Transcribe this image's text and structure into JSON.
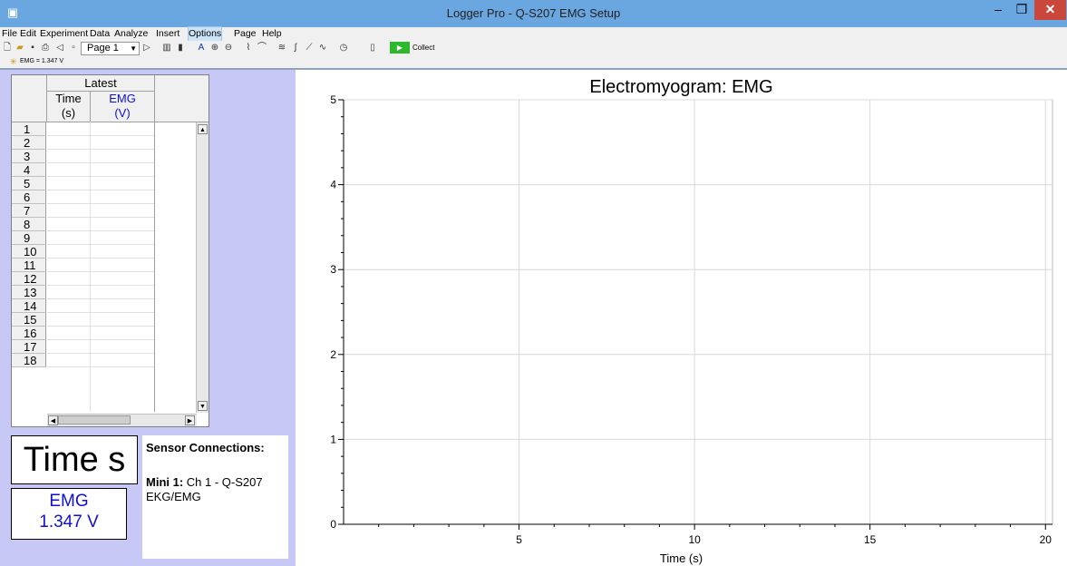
{
  "window": {
    "title": "Logger Pro - Q-S207 EMG Setup",
    "minimize": "–",
    "maximize": "❐",
    "close": "✕"
  },
  "menu": [
    "File",
    "Edit",
    "Experiment",
    "Data",
    "Analyze",
    "Insert",
    "Options",
    "Page",
    "Help"
  ],
  "toolbar": {
    "page_value": "Page 1",
    "collect_label": "Collect"
  },
  "status": {
    "text": "EMG = 1.347 V"
  },
  "table": {
    "group_header": "Latest",
    "columns": [
      {
        "name": "Time",
        "unit": "(s)"
      },
      {
        "name": "EMG",
        "unit": "(V)"
      }
    ],
    "row_numbers": [
      "1",
      "2",
      "3",
      "4",
      "5",
      "6",
      "7",
      "8",
      "9",
      "10",
      "11",
      "12",
      "13",
      "14",
      "15",
      "16",
      "17",
      "18"
    ]
  },
  "meters": {
    "time_label": "Time s",
    "emg_name": "EMG",
    "emg_value": "1.347 V"
  },
  "sensor": {
    "title": "Sensor Connections:",
    "connection_label": "Mini 1:",
    "connection_text": "Ch 1 - Q-S207 EKG/EMG"
  },
  "chart_data": {
    "type": "line",
    "title": "Electromyogram: EMG",
    "xlabel": "Time (s)",
    "ylabel": "",
    "xlim": [
      0,
      20.2
    ],
    "ylim": [
      0,
      5
    ],
    "x_major_ticks": [
      5,
      10,
      15,
      20
    ],
    "y_major_ticks": [
      0,
      1,
      2,
      3,
      4,
      5
    ],
    "grid": true,
    "series": []
  }
}
